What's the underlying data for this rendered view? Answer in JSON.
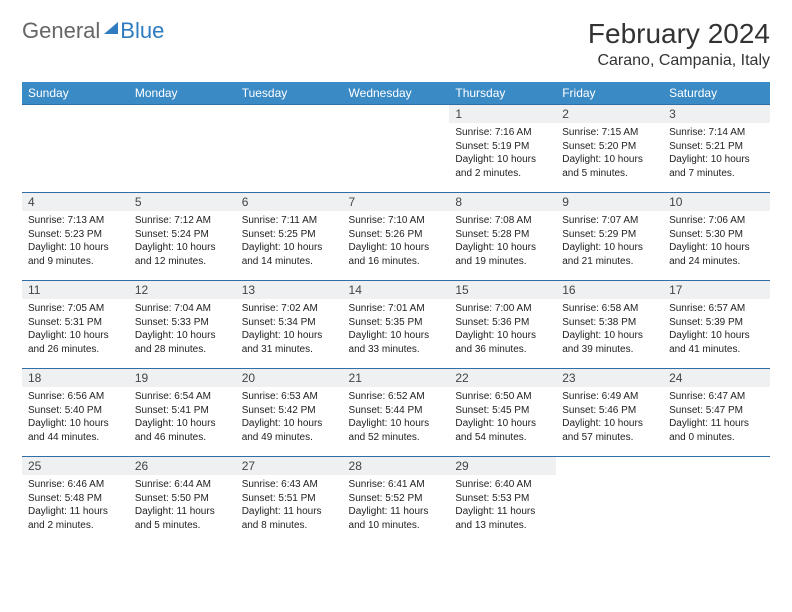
{
  "brand": {
    "part1": "General",
    "part2": "Blue"
  },
  "title": "February 2024",
  "location": "Carano, Campania, Italy",
  "colors": {
    "header_bg": "#3a8ac6",
    "row_border": "#2f6fa6",
    "daynum_bg": "#eef0f2",
    "brand_blue": "#2f7bbf"
  },
  "weekdays": [
    "Sunday",
    "Monday",
    "Tuesday",
    "Wednesday",
    "Thursday",
    "Friday",
    "Saturday"
  ],
  "weeks": [
    [
      null,
      null,
      null,
      null,
      {
        "n": "1",
        "sr": "Sunrise: 7:16 AM",
        "ss": "Sunset: 5:19 PM",
        "dl": "Daylight: 10 hours and 2 minutes."
      },
      {
        "n": "2",
        "sr": "Sunrise: 7:15 AM",
        "ss": "Sunset: 5:20 PM",
        "dl": "Daylight: 10 hours and 5 minutes."
      },
      {
        "n": "3",
        "sr": "Sunrise: 7:14 AM",
        "ss": "Sunset: 5:21 PM",
        "dl": "Daylight: 10 hours and 7 minutes."
      }
    ],
    [
      {
        "n": "4",
        "sr": "Sunrise: 7:13 AM",
        "ss": "Sunset: 5:23 PM",
        "dl": "Daylight: 10 hours and 9 minutes."
      },
      {
        "n": "5",
        "sr": "Sunrise: 7:12 AM",
        "ss": "Sunset: 5:24 PM",
        "dl": "Daylight: 10 hours and 12 minutes."
      },
      {
        "n": "6",
        "sr": "Sunrise: 7:11 AM",
        "ss": "Sunset: 5:25 PM",
        "dl": "Daylight: 10 hours and 14 minutes."
      },
      {
        "n": "7",
        "sr": "Sunrise: 7:10 AM",
        "ss": "Sunset: 5:26 PM",
        "dl": "Daylight: 10 hours and 16 minutes."
      },
      {
        "n": "8",
        "sr": "Sunrise: 7:08 AM",
        "ss": "Sunset: 5:28 PM",
        "dl": "Daylight: 10 hours and 19 minutes."
      },
      {
        "n": "9",
        "sr": "Sunrise: 7:07 AM",
        "ss": "Sunset: 5:29 PM",
        "dl": "Daylight: 10 hours and 21 minutes."
      },
      {
        "n": "10",
        "sr": "Sunrise: 7:06 AM",
        "ss": "Sunset: 5:30 PM",
        "dl": "Daylight: 10 hours and 24 minutes."
      }
    ],
    [
      {
        "n": "11",
        "sr": "Sunrise: 7:05 AM",
        "ss": "Sunset: 5:31 PM",
        "dl": "Daylight: 10 hours and 26 minutes."
      },
      {
        "n": "12",
        "sr": "Sunrise: 7:04 AM",
        "ss": "Sunset: 5:33 PM",
        "dl": "Daylight: 10 hours and 28 minutes."
      },
      {
        "n": "13",
        "sr": "Sunrise: 7:02 AM",
        "ss": "Sunset: 5:34 PM",
        "dl": "Daylight: 10 hours and 31 minutes."
      },
      {
        "n": "14",
        "sr": "Sunrise: 7:01 AM",
        "ss": "Sunset: 5:35 PM",
        "dl": "Daylight: 10 hours and 33 minutes."
      },
      {
        "n": "15",
        "sr": "Sunrise: 7:00 AM",
        "ss": "Sunset: 5:36 PM",
        "dl": "Daylight: 10 hours and 36 minutes."
      },
      {
        "n": "16",
        "sr": "Sunrise: 6:58 AM",
        "ss": "Sunset: 5:38 PM",
        "dl": "Daylight: 10 hours and 39 minutes."
      },
      {
        "n": "17",
        "sr": "Sunrise: 6:57 AM",
        "ss": "Sunset: 5:39 PM",
        "dl": "Daylight: 10 hours and 41 minutes."
      }
    ],
    [
      {
        "n": "18",
        "sr": "Sunrise: 6:56 AM",
        "ss": "Sunset: 5:40 PM",
        "dl": "Daylight: 10 hours and 44 minutes."
      },
      {
        "n": "19",
        "sr": "Sunrise: 6:54 AM",
        "ss": "Sunset: 5:41 PM",
        "dl": "Daylight: 10 hours and 46 minutes."
      },
      {
        "n": "20",
        "sr": "Sunrise: 6:53 AM",
        "ss": "Sunset: 5:42 PM",
        "dl": "Daylight: 10 hours and 49 minutes."
      },
      {
        "n": "21",
        "sr": "Sunrise: 6:52 AM",
        "ss": "Sunset: 5:44 PM",
        "dl": "Daylight: 10 hours and 52 minutes."
      },
      {
        "n": "22",
        "sr": "Sunrise: 6:50 AM",
        "ss": "Sunset: 5:45 PM",
        "dl": "Daylight: 10 hours and 54 minutes."
      },
      {
        "n": "23",
        "sr": "Sunrise: 6:49 AM",
        "ss": "Sunset: 5:46 PM",
        "dl": "Daylight: 10 hours and 57 minutes."
      },
      {
        "n": "24",
        "sr": "Sunrise: 6:47 AM",
        "ss": "Sunset: 5:47 PM",
        "dl": "Daylight: 11 hours and 0 minutes."
      }
    ],
    [
      {
        "n": "25",
        "sr": "Sunrise: 6:46 AM",
        "ss": "Sunset: 5:48 PM",
        "dl": "Daylight: 11 hours and 2 minutes."
      },
      {
        "n": "26",
        "sr": "Sunrise: 6:44 AM",
        "ss": "Sunset: 5:50 PM",
        "dl": "Daylight: 11 hours and 5 minutes."
      },
      {
        "n": "27",
        "sr": "Sunrise: 6:43 AM",
        "ss": "Sunset: 5:51 PM",
        "dl": "Daylight: 11 hours and 8 minutes."
      },
      {
        "n": "28",
        "sr": "Sunrise: 6:41 AM",
        "ss": "Sunset: 5:52 PM",
        "dl": "Daylight: 11 hours and 10 minutes."
      },
      {
        "n": "29",
        "sr": "Sunrise: 6:40 AM",
        "ss": "Sunset: 5:53 PM",
        "dl": "Daylight: 11 hours and 13 minutes."
      },
      null,
      null
    ]
  ]
}
